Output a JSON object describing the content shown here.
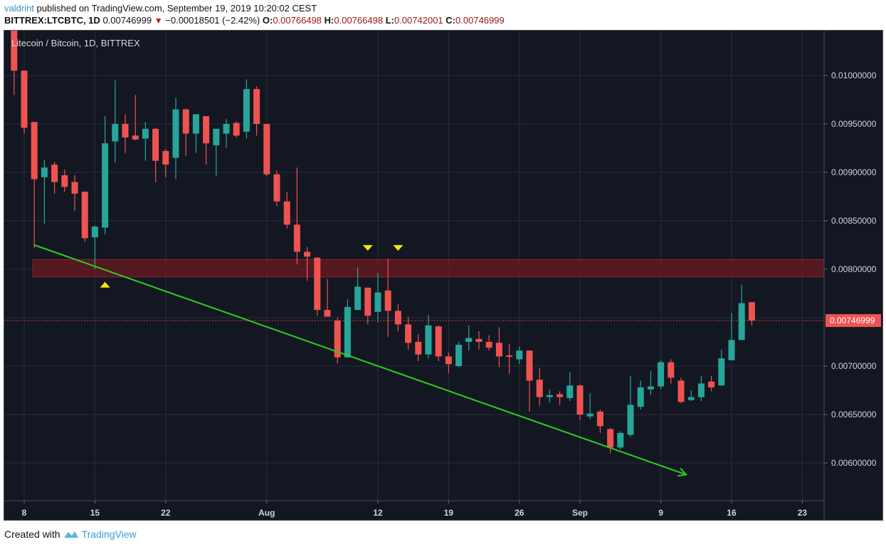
{
  "header": {
    "publisher": "valdrint",
    "published_text": "published on TradingView.com, September 19, 2019 10:20:02 CEST",
    "symbol": "BITTREX:LTCBTC, 1D",
    "last_price": "0.00746999",
    "change_icon": "down-triangle-icon",
    "change": "−0.00018501 (−2.42%)",
    "o_label": "O:",
    "o_value": "0.00766498",
    "h_label": "H:",
    "h_value": "0.00766498",
    "l_label": "L:",
    "l_value": "0.00742001",
    "c_label": "C:",
    "c_value": "0.00746999"
  },
  "chart_title": "Litecoin / Bitcoin, 1D, BITTREX",
  "footer": {
    "created_with": "Created with",
    "brand": "TradingView",
    "logo_icon": "tradingview-logo-icon"
  },
  "colors": {
    "background": "#131722",
    "grid": "#2a2e39",
    "up": "#26a69a",
    "down": "#ef5350",
    "zone": "#6b1a22",
    "trendline": "#2ecc1f",
    "marker": "#f5e50a",
    "price_label": "#ef5350",
    "axis_text": "#d1d4dc"
  },
  "chart_data": {
    "type": "candlestick",
    "title": "Litecoin / Bitcoin, 1D, BITTREX",
    "xlabel": "",
    "ylabel": "",
    "ylim": [
      0.0057,
      0.0104
    ],
    "grid": true,
    "x_ticks": [
      {
        "label": "8",
        "day": 0
      },
      {
        "label": "15",
        "day": 7
      },
      {
        "label": "22",
        "day": 14
      },
      {
        "label": "Aug",
        "day": 24
      },
      {
        "label": "12",
        "day": 35
      },
      {
        "label": "19",
        "day": 42
      },
      {
        "label": "26",
        "day": 49
      },
      {
        "label": "Sep",
        "day": 55
      },
      {
        "label": "9",
        "day": 63
      },
      {
        "label": "16",
        "day": 70
      },
      {
        "label": "23",
        "day": 77
      }
    ],
    "y_ticks": [
      "0.01000000",
      "0.00950000",
      "0.00900000",
      "0.00850000",
      "0.00800000",
      "0.00700000",
      "0.00650000",
      "0.00600000"
    ],
    "current_price": "0.00746999",
    "candles": [
      {
        "day": -1,
        "o": 0.0106,
        "h": 0.0107,
        "l": 0.0098,
        "c": 0.01005
      },
      {
        "day": 0,
        "o": 0.01005,
        "h": 0.01005,
        "l": 0.0094,
        "c": 0.00946
      },
      {
        "day": 1,
        "o": 0.00952,
        "h": 0.00952,
        "l": 0.00822,
        "c": 0.00893
      },
      {
        "day": 2,
        "o": 0.00895,
        "h": 0.00913,
        "l": 0.00847,
        "c": 0.00905
      },
      {
        "day": 3,
        "o": 0.00908,
        "h": 0.00911,
        "l": 0.00878,
        "c": 0.0089
      },
      {
        "day": 4,
        "o": 0.00897,
        "h": 0.00903,
        "l": 0.0088,
        "c": 0.00885
      },
      {
        "day": 5,
        "o": 0.0089,
        "h": 0.00897,
        "l": 0.0086,
        "c": 0.00878
      },
      {
        "day": 6,
        "o": 0.0088,
        "h": 0.0088,
        "l": 0.00828,
        "c": 0.00832
      },
      {
        "day": 7,
        "o": 0.00833,
        "h": 0.00845,
        "l": 0.008,
        "c": 0.00844
      },
      {
        "day": 8,
        "o": 0.00843,
        "h": 0.00958,
        "l": 0.00836,
        "c": 0.0093
      },
      {
        "day": 9,
        "o": 0.00932,
        "h": 0.00995,
        "l": 0.0091,
        "c": 0.0095
      },
      {
        "day": 10,
        "o": 0.0095,
        "h": 0.0096,
        "l": 0.0092,
        "c": 0.00936
      },
      {
        "day": 11,
        "o": 0.00938,
        "h": 0.0098,
        "l": 0.00933,
        "c": 0.00934
      },
      {
        "day": 12,
        "o": 0.00935,
        "h": 0.00952,
        "l": 0.00912,
        "c": 0.00945
      },
      {
        "day": 13,
        "o": 0.00945,
        "h": 0.00946,
        "l": 0.0089,
        "c": 0.00912
      },
      {
        "day": 14,
        "o": 0.00922,
        "h": 0.00924,
        "l": 0.00895,
        "c": 0.00908
      },
      {
        "day": 15,
        "o": 0.00915,
        "h": 0.00977,
        "l": 0.00893,
        "c": 0.00965
      },
      {
        "day": 16,
        "o": 0.00965,
        "h": 0.00966,
        "l": 0.00917,
        "c": 0.0094
      },
      {
        "day": 17,
        "o": 0.0094,
        "h": 0.00955,
        "l": 0.0092,
        "c": 0.0096
      },
      {
        "day": 18,
        "o": 0.00958,
        "h": 0.00958,
        "l": 0.00908,
        "c": 0.0093
      },
      {
        "day": 19,
        "o": 0.00928,
        "h": 0.00942,
        "l": 0.00896,
        "c": 0.00945
      },
      {
        "day": 20,
        "o": 0.0094,
        "h": 0.00955,
        "l": 0.00925,
        "c": 0.0095
      },
      {
        "day": 21,
        "o": 0.00951,
        "h": 0.00953,
        "l": 0.00936,
        "c": 0.00938
      },
      {
        "day": 22,
        "o": 0.00942,
        "h": 0.00996,
        "l": 0.00935,
        "c": 0.00986
      },
      {
        "day": 23,
        "o": 0.00986,
        "h": 0.00989,
        "l": 0.00938,
        "c": 0.0095
      },
      {
        "day": 24,
        "o": 0.0095,
        "h": 0.0095,
        "l": 0.00896,
        "c": 0.00898
      },
      {
        "day": 25,
        "o": 0.00898,
        "h": 0.00902,
        "l": 0.00865,
        "c": 0.0087
      },
      {
        "day": 26,
        "o": 0.0087,
        "h": 0.0088,
        "l": 0.00842,
        "c": 0.00846
      },
      {
        "day": 27,
        "o": 0.00846,
        "h": 0.00905,
        "l": 0.00805,
        "c": 0.00818
      },
      {
        "day": 28,
        "o": 0.00818,
        "h": 0.00823,
        "l": 0.00788,
        "c": 0.00813
      },
      {
        "day": 29,
        "o": 0.00812,
        "h": 0.00812,
        "l": 0.00752,
        "c": 0.00758
      },
      {
        "day": 30,
        "o": 0.00758,
        "h": 0.0079,
        "l": 0.00752,
        "c": 0.00751
      },
      {
        "day": 31,
        "o": 0.00747,
        "h": 0.0075,
        "l": 0.00703,
        "c": 0.00709
      },
      {
        "day": 32,
        "o": 0.00709,
        "h": 0.00769,
        "l": 0.00709,
        "c": 0.00761
      },
      {
        "day": 33,
        "o": 0.00758,
        "h": 0.00802,
        "l": 0.00758,
        "c": 0.00782
      },
      {
        "day": 34,
        "o": 0.00781,
        "h": 0.00781,
        "l": 0.00743,
        "c": 0.00752
      },
      {
        "day": 35,
        "o": 0.00756,
        "h": 0.00796,
        "l": 0.00745,
        "c": 0.00776
      },
      {
        "day": 36,
        "o": 0.00778,
        "h": 0.00811,
        "l": 0.0073,
        "c": 0.00757
      },
      {
        "day": 37,
        "o": 0.00757,
        "h": 0.00764,
        "l": 0.00736,
        "c": 0.00743
      },
      {
        "day": 38,
        "o": 0.00743,
        "h": 0.00751,
        "l": 0.00717,
        "c": 0.00724
      },
      {
        "day": 39,
        "o": 0.00725,
        "h": 0.00733,
        "l": 0.00705,
        "c": 0.00712
      },
      {
        "day": 40,
        "o": 0.00712,
        "h": 0.00753,
        "l": 0.00708,
        "c": 0.00742
      },
      {
        "day": 41,
        "o": 0.00741,
        "h": 0.00742,
        "l": 0.00705,
        "c": 0.0071
      },
      {
        "day": 42,
        "o": 0.0071,
        "h": 0.00714,
        "l": 0.00693,
        "c": 0.00702
      },
      {
        "day": 43,
        "o": 0.007,
        "h": 0.00725,
        "l": 0.00699,
        "c": 0.00722
      },
      {
        "day": 44,
        "o": 0.00725,
        "h": 0.00742,
        "l": 0.00716,
        "c": 0.00729
      },
      {
        "day": 45,
        "o": 0.00728,
        "h": 0.00736,
        "l": 0.00717,
        "c": 0.00725
      },
      {
        "day": 46,
        "o": 0.00725,
        "h": 0.00732,
        "l": 0.00716,
        "c": 0.00719
      },
      {
        "day": 47,
        "o": 0.00724,
        "h": 0.0074,
        "l": 0.00699,
        "c": 0.0071
      },
      {
        "day": 48,
        "o": 0.00711,
        "h": 0.00723,
        "l": 0.00692,
        "c": 0.0071
      },
      {
        "day": 49,
        "o": 0.00707,
        "h": 0.0072,
        "l": 0.00702,
        "c": 0.00716
      },
      {
        "day": 50,
        "o": 0.00716,
        "h": 0.00716,
        "l": 0.00653,
        "c": 0.00685
      },
      {
        "day": 51,
        "o": 0.00686,
        "h": 0.00698,
        "l": 0.00659,
        "c": 0.00668
      },
      {
        "day": 52,
        "o": 0.00668,
        "h": 0.00676,
        "l": 0.00662,
        "c": 0.0067
      },
      {
        "day": 53,
        "o": 0.00671,
        "h": 0.00674,
        "l": 0.0066,
        "c": 0.00668
      },
      {
        "day": 54,
        "o": 0.00667,
        "h": 0.00694,
        "l": 0.00664,
        "c": 0.0068
      },
      {
        "day": 55,
        "o": 0.0068,
        "h": 0.00681,
        "l": 0.00644,
        "c": 0.0065
      },
      {
        "day": 56,
        "o": 0.00648,
        "h": 0.00672,
        "l": 0.00645,
        "c": 0.00651
      },
      {
        "day": 57,
        "o": 0.00653,
        "h": 0.00655,
        "l": 0.00631,
        "c": 0.00638
      },
      {
        "day": 58,
        "o": 0.00635,
        "h": 0.00636,
        "l": 0.0061,
        "c": 0.00616
      },
      {
        "day": 59,
        "o": 0.00616,
        "h": 0.00633,
        "l": 0.00614,
        "c": 0.00631
      },
      {
        "day": 60,
        "o": 0.00629,
        "h": 0.0069,
        "l": 0.00627,
        "c": 0.0066
      },
      {
        "day": 61,
        "o": 0.00658,
        "h": 0.00685,
        "l": 0.00655,
        "c": 0.00678
      },
      {
        "day": 62,
        "o": 0.00676,
        "h": 0.00695,
        "l": 0.0067,
        "c": 0.00679
      },
      {
        "day": 63,
        "o": 0.00679,
        "h": 0.00706,
        "l": 0.00676,
        "c": 0.00704
      },
      {
        "day": 64,
        "o": 0.00704,
        "h": 0.00707,
        "l": 0.00682,
        "c": 0.00688
      },
      {
        "day": 65,
        "o": 0.00685,
        "h": 0.00688,
        "l": 0.00662,
        "c": 0.00663
      },
      {
        "day": 66,
        "o": 0.00665,
        "h": 0.00675,
        "l": 0.00664,
        "c": 0.00668
      },
      {
        "day": 67,
        "o": 0.00668,
        "h": 0.0069,
        "l": 0.00664,
        "c": 0.00682
      },
      {
        "day": 68,
        "o": 0.00684,
        "h": 0.0069,
        "l": 0.00674,
        "c": 0.00678
      },
      {
        "day": 69,
        "o": 0.0068,
        "h": 0.00717,
        "l": 0.0068,
        "c": 0.00708
      },
      {
        "day": 70,
        "o": 0.00706,
        "h": 0.00755,
        "l": 0.00706,
        "c": 0.00727
      },
      {
        "day": 71,
        "o": 0.00727,
        "h": 0.00784,
        "l": 0.00727,
        "c": 0.00765
      },
      {
        "day": 72,
        "o": 0.00766,
        "h": 0.00766,
        "l": 0.00742,
        "c": 0.00747
      }
    ],
    "annotations": {
      "resistance_zone": {
        "top": 0.0081,
        "bottom": 0.00792,
        "x_start_day": 1
      },
      "trendline": {
        "from": {
          "day": 1,
          "price": 0.00825
        },
        "to": {
          "day": 65.5,
          "price": 0.00588
        },
        "arrow": true
      },
      "markers": [
        {
          "type": "up-triangle",
          "day": 8,
          "price": 0.00784
        },
        {
          "type": "down-triangle",
          "day": 34,
          "price": 0.00822
        },
        {
          "type": "down-triangle",
          "day": 37,
          "price": 0.00822
        }
      ]
    }
  }
}
